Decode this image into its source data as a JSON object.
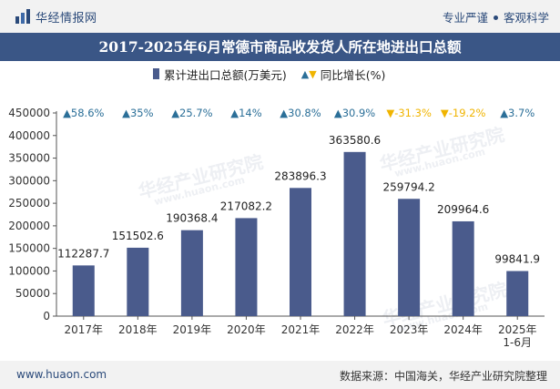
{
  "header": {
    "brand": "华经情报网",
    "slogan_left": "专业严谨",
    "slogan_right": "客观科学"
  },
  "title": "2017-2025年6月常德市商品收发货人所在地进出口总额",
  "legend": {
    "bar_label": "累计进出口总额(万美元)",
    "line_label": "同比增长(%)"
  },
  "watermark": "华经产业研究院",
  "watermark_url": "www.huaon.com",
  "footer": {
    "url": "www.huaon.com",
    "source": "数据来源：中国海关，华经产业研究院整理"
  },
  "colors": {
    "bar": "#4a5b8c",
    "up": "#2b6f98",
    "down": "#f0b400",
    "header_bg": "#3a5686",
    "axis_text": "#333333"
  },
  "chart_data": {
    "type": "bar",
    "categories": [
      "2017年",
      "2018年",
      "2019年",
      "2020年",
      "2021年",
      "2022年",
      "2023年",
      "2024年",
      "2025年\n1-6月"
    ],
    "series": [
      {
        "name": "累计进出口总额(万美元)",
        "values": [
          112287.7,
          151502.6,
          190368.4,
          217082.2,
          283896.3,
          363580.6,
          259794.2,
          209964.6,
          99841.9
        ],
        "value_labels": [
          "112287.7",
          "151502.6",
          "190368.4",
          "217082.2",
          "283896.3",
          "363580.6",
          "259794.2",
          "209964.6",
          "99841.9"
        ]
      },
      {
        "name": "同比增长(%)",
        "values": [
          58.6,
          35,
          25.7,
          14,
          30.8,
          30.9,
          -31.3,
          -19.2,
          3.7
        ],
        "value_labels": [
          "58.6%",
          "35%",
          "25.7%",
          "14%",
          "30.8%",
          "30.9%",
          "-31.3%",
          "-19.2%",
          "3.7%"
        ]
      }
    ],
    "y_ticks": [
      "0",
      "50000",
      "100000",
      "150000",
      "200000",
      "250000",
      "300000",
      "350000",
      "400000",
      "450000"
    ],
    "ylim": [
      0,
      450000
    ],
    "grid": false,
    "legend_position": "top"
  }
}
